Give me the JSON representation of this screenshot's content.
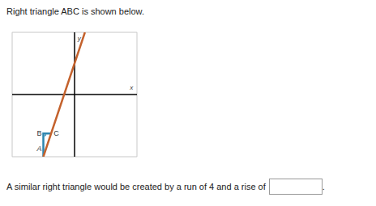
{
  "prompt": "Right triangle ABC is shown below.",
  "chart_data": {
    "type": "line",
    "xlim": [
      -8,
      8
    ],
    "ylim": [
      -8,
      8
    ],
    "xticks": [
      -8,
      -7,
      -6,
      -5,
      -4,
      -3,
      -2,
      -1,
      0,
      1,
      2,
      3,
      4,
      5,
      6,
      7,
      8
    ],
    "yticks": [
      -8,
      -7,
      -6,
      -5,
      -4,
      -3,
      -2,
      -1,
      0,
      1,
      2,
      3,
      4,
      5,
      6,
      7,
      8
    ],
    "grid": true,
    "tick_labels": false,
    "x_label": "x",
    "y_label": "y",
    "line": {
      "x": [
        -4,
        1.33
      ],
      "y": [
        -8,
        8
      ],
      "color": "#c4622d"
    },
    "triangle": {
      "color": "#2e86b0",
      "points": [
        {
          "label": "A",
          "x": -4,
          "y": -8
        },
        {
          "label": "B",
          "x": -4,
          "y": -5
        },
        {
          "label": "C",
          "x": -3,
          "y": -5
        }
      ]
    }
  },
  "question": {
    "text": "A similar right triangle would be created by a run of 4 and a rise of",
    "after_box": "."
  }
}
